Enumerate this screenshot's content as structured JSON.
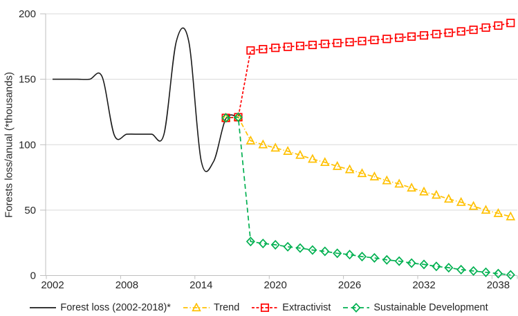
{
  "chart_data": {
    "type": "line",
    "title": "",
    "xlabel": "",
    "ylabel": "Forests loss/anual (*thousands)",
    "x_ticks": [
      2002,
      2008,
      2014,
      2020,
      2026,
      2032,
      2038
    ],
    "y_ticks": [
      0,
      50,
      100,
      150,
      200
    ],
    "xlim": [
      2002,
      2039
    ],
    "ylim": [
      0,
      200
    ],
    "grid": "horizontal",
    "legend_position": "bottom",
    "colors": {
      "grid": "#d9d9d9",
      "axis": "#bfbfbf",
      "text": "#262626"
    },
    "series": [
      {
        "name": "Forest loss (2002-2018)*",
        "color": "#1a1a1a",
        "dash": "solid",
        "marker": "none",
        "smooth": true,
        "x": [
          2002,
          2003,
          2004,
          2005,
          2006,
          2007,
          2008,
          2009,
          2010,
          2011,
          2012,
          2013,
          2014,
          2015,
          2016,
          2017
        ],
        "values": [
          150,
          150,
          150,
          150,
          152,
          107,
          108,
          108,
          108,
          108,
          179,
          179,
          88,
          87,
          120,
          121
        ]
      },
      {
        "name": "Trend",
        "color": "#FFC000",
        "dash": "dash-dot",
        "marker": "triangle",
        "smooth": false,
        "x": [
          2016,
          2017,
          2018,
          2019,
          2020,
          2021,
          2022,
          2023,
          2024,
          2025,
          2026,
          2027,
          2028,
          2029,
          2030,
          2031,
          2032,
          2033,
          2034,
          2035,
          2036,
          2037,
          2038,
          2039
        ],
        "values": [
          120.5,
          121,
          103,
          100,
          97.5,
          95,
          92,
          89,
          86.5,
          83.5,
          81,
          78,
          75.5,
          72.5,
          70,
          67,
          64,
          61.5,
          58.5,
          56,
          53,
          50,
          47.5,
          45
        ]
      },
      {
        "name": "Extractivist",
        "color": "#FF0000",
        "dash": "short-dash",
        "marker": "square",
        "smooth": false,
        "x": [
          2016,
          2017,
          2018,
          2019,
          2020,
          2021,
          2022,
          2023,
          2024,
          2025,
          2026,
          2027,
          2028,
          2029,
          2030,
          2031,
          2032,
          2033,
          2034,
          2035,
          2036,
          2037,
          2038,
          2039
        ],
        "values": [
          120.5,
          121,
          172,
          173,
          174,
          174.8,
          175.5,
          176.2,
          177,
          177.7,
          178.4,
          179.2,
          180,
          180.8,
          181.7,
          182.6,
          183.5,
          184.5,
          185.5,
          186.6,
          187.8,
          189.5,
          191,
          193
        ]
      },
      {
        "name": "Sustainable Development",
        "color": "#00B050",
        "dash": "long-dash",
        "marker": "diamond",
        "smooth": false,
        "x": [
          2016,
          2017,
          2018,
          2019,
          2020,
          2021,
          2022,
          2023,
          2024,
          2025,
          2026,
          2027,
          2028,
          2029,
          2030,
          2031,
          2032,
          2033,
          2034,
          2035,
          2036,
          2037,
          2038,
          2039
        ],
        "values": [
          120.5,
          121,
          26,
          24.5,
          23.5,
          22,
          21,
          19.5,
          18.5,
          17,
          16,
          14.5,
          13.5,
          12,
          11,
          9.5,
          8.5,
          7,
          6,
          4.5,
          3.5,
          2.5,
          1.5,
          0.5
        ]
      }
    ]
  }
}
